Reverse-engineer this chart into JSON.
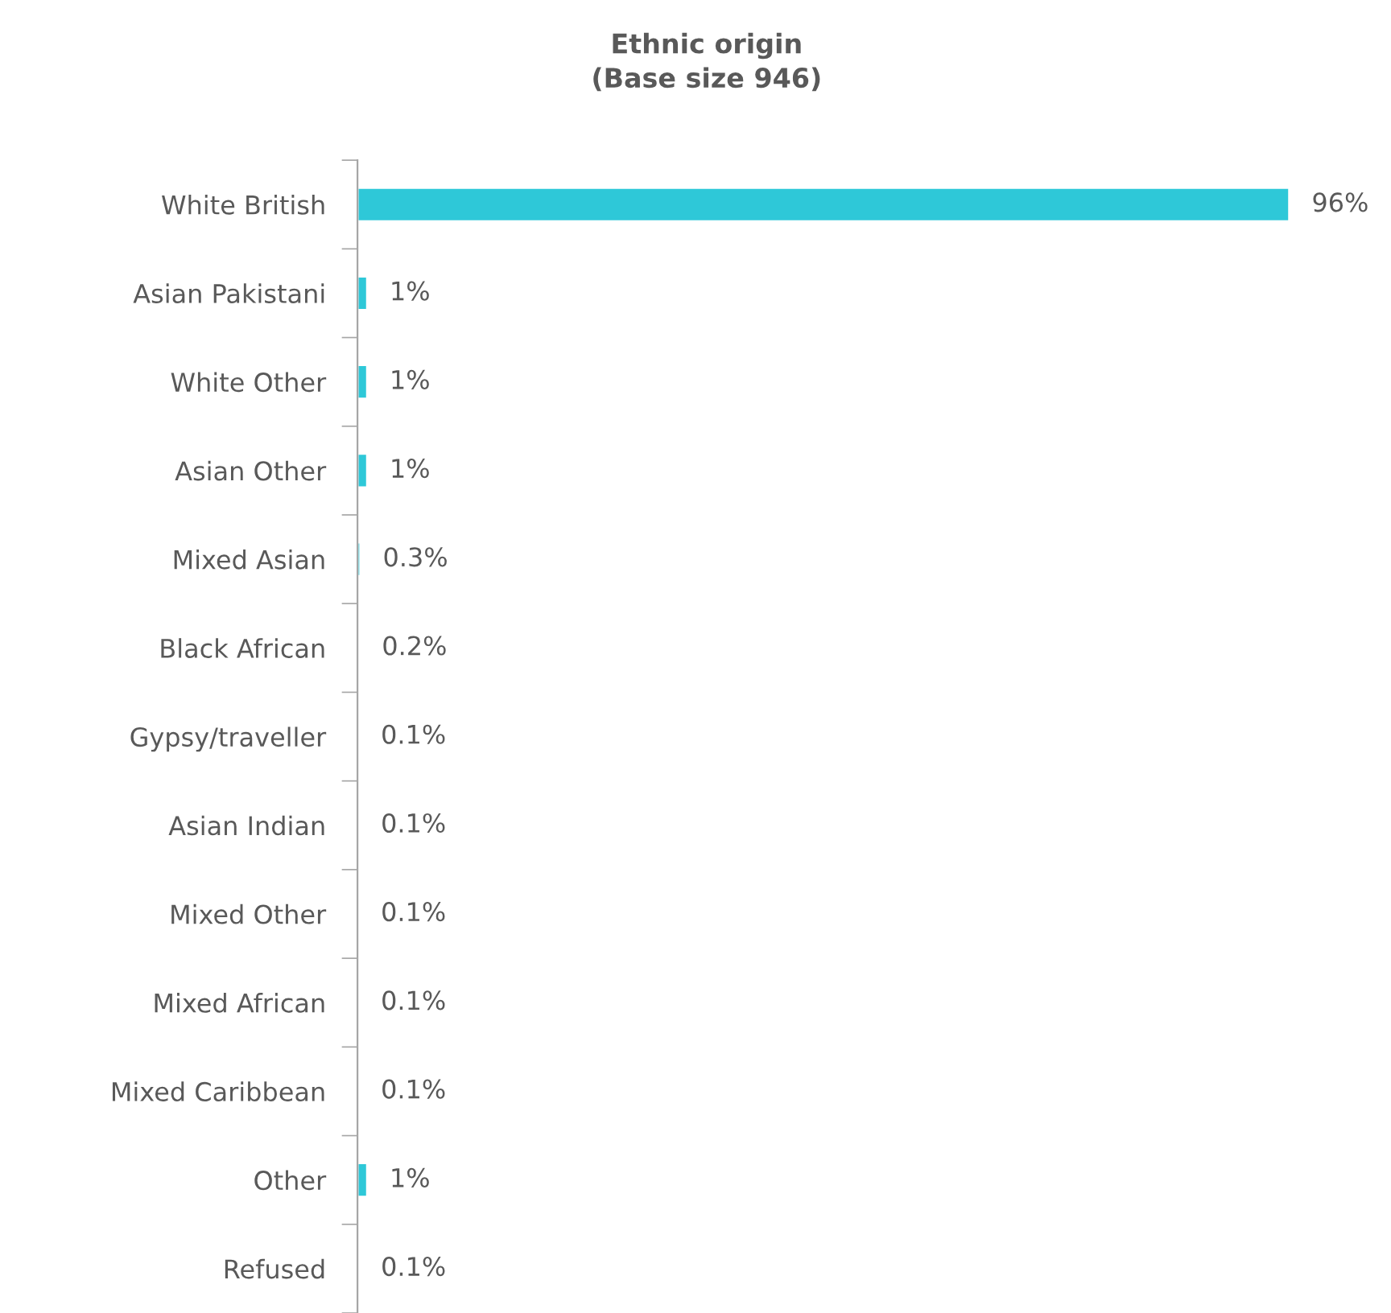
{
  "chart_data": {
    "type": "bar",
    "orientation": "horizontal",
    "title": "Ethnic origin\n(Base size 946)",
    "categories": [
      "White British",
      "Asian Pakistani",
      "White Other",
      "Asian Other",
      "Mixed Asian",
      "Black African",
      "Gypsy/traveller",
      "Asian Indian",
      "Mixed Other",
      "Mixed African",
      "Mixed Caribbean",
      "Other",
      "Refused"
    ],
    "series": [
      {
        "color": "#2ec8d8",
        "values": [
          96,
          1,
          1,
          1,
          0.3,
          0.2,
          0.1,
          0.1,
          0.1,
          0.1,
          0.1,
          1,
          0.1
        ],
        "value_labels": [
          "96%",
          "1%",
          "1%",
          "1%",
          "0.3%",
          "0.2%",
          "0.1%",
          "0.1%",
          "0.1%",
          "0.1%",
          "0.1%",
          "1%",
          "0.1%"
        ]
      }
    ],
    "grid": false,
    "legend": false
  }
}
